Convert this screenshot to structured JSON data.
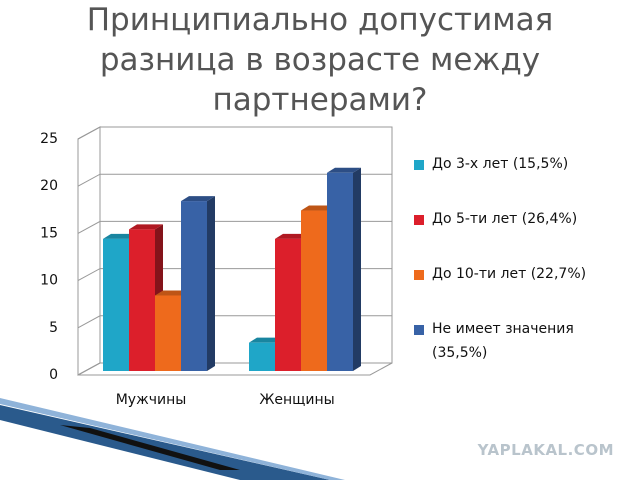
{
  "chart_data": {
    "type": "bar3d",
    "title": "Принципиально допустимая разница в возрасте между партнерами?",
    "categories": [
      "Мужчины",
      "Женщины"
    ],
    "series": [
      {
        "name": "До 3-х лет (15,5%)",
        "color": "#1fa6c8",
        "values": [
          14,
          3
        ]
      },
      {
        "name": "До 5-ти лет (26,4%)",
        "color": "#dc1f2b",
        "values": [
          15,
          14
        ]
      },
      {
        "name": "До 10-ти лет (22,7%)",
        "color": "#ee6a1c",
        "values": [
          8,
          17
        ]
      },
      {
        "name": "Не имеет значения (35,5%)",
        "color": "#3862a6",
        "values": [
          18,
          21
        ]
      }
    ],
    "ylim": [
      0,
      25
    ],
    "yticks": [
      0,
      5,
      10,
      15,
      20,
      25
    ],
    "grid": true,
    "legend": "right"
  },
  "watermark": "YAPLAKAL.COM"
}
